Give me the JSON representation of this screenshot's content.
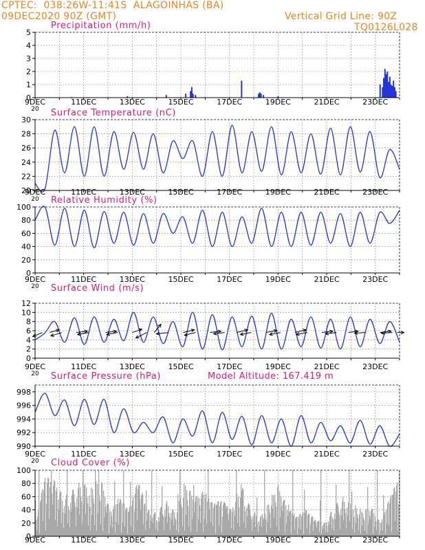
{
  "header": {
    "line1_left": "CPTEC:  038:26W-11:41S  ALAGOINHAS (BA)",
    "line2_left": "09DEC2020 90Z (GMT)",
    "grid_note": "Vertical Grid Line: 90Z",
    "run_code": "TQ0126L028",
    "model_altitude": "Model Altitude: 167.419  m"
  },
  "colors": {
    "header_text": "#e8861c",
    "panel_title": "#e0187a",
    "series_line": "#2233dd",
    "cloud_fill": "#a8a8a8",
    "grid": "#8a8a8a",
    "axis": "#000000"
  },
  "x_axis": {
    "days": 15,
    "tick_labels": [
      "9DEC",
      "11DEC",
      "13DEC",
      "15DEC",
      "17DEC",
      "19DEC",
      "21DEC",
      "23DEC"
    ],
    "tick_days": [
      0,
      2,
      4,
      6,
      8,
      10,
      12,
      14
    ],
    "overlap_fragment": "20"
  },
  "chart_data": [
    {
      "type": "bar",
      "title": "Precipitation  (mm/h)",
      "ylim": [
        0,
        5
      ],
      "yticks": [
        "0",
        "1",
        "2",
        "3",
        "4",
        "5"
      ],
      "grid": true,
      "x_days": [
        1.5,
        3.8,
        5.4,
        6.2,
        6.4,
        6.45,
        6.5,
        6.6,
        8.5,
        9.2,
        9.25,
        9.3,
        9.4,
        10.0,
        14.2,
        14.3,
        14.35,
        14.4,
        14.45,
        14.5,
        14.55,
        14.6,
        14.65,
        14.7,
        14.75,
        14.8,
        14.85
      ],
      "values": [
        0.05,
        0.1,
        0.2,
        0.3,
        0.5,
        0.8,
        0.3,
        0.2,
        1.3,
        0.3,
        0.4,
        0.3,
        0.2,
        0.1,
        1.0,
        0.8,
        1.5,
        2.2,
        1.8,
        2.0,
        1.2,
        1.6,
        1.0,
        0.9,
        1.3,
        0.8,
        0.5
      ]
    },
    {
      "type": "line",
      "title": "Surface Temperature (nC)",
      "ylim": [
        20,
        30
      ],
      "yticks": [
        "20",
        "22",
        "24",
        "26",
        "28",
        "30"
      ],
      "grid": true,
      "series": [
        {
          "values": [
            21.0,
            20.2,
            28.5,
            22.5,
            29.0,
            22.0,
            29.0,
            22.0,
            28.3,
            23.0,
            28.2,
            23.0,
            28.0,
            22.5,
            27.0,
            24.5,
            27.0,
            22.0,
            28.3,
            22.0,
            29.2,
            22.5,
            28.3,
            22.7,
            29.0,
            22.2,
            28.3,
            22.5,
            28.0,
            22.3,
            28.8,
            22.2,
            29.0,
            22.6,
            28.3,
            21.8,
            25.8,
            23.0
          ]
        }
      ]
    },
    {
      "type": "line",
      "title": "Relative Humidity (%)",
      "ylim": [
        0,
        100
      ],
      "yticks": [
        "0",
        "20",
        "40",
        "60",
        "80",
        "100"
      ],
      "grid": true,
      "series": [
        {
          "values": [
            80,
            100,
            42,
            98,
            40,
            95,
            38,
            93,
            45,
            92,
            42,
            90,
            45,
            90,
            60,
            85,
            45,
            95,
            40,
            92,
            40,
            85,
            45,
            98,
            40,
            92,
            40,
            92,
            42,
            92,
            45,
            90,
            40,
            92,
            45,
            92,
            75,
            95
          ]
        }
      ]
    },
    {
      "type": "line",
      "title": "Surface Wind (m/s)",
      "ylim": [
        0,
        12
      ],
      "yticks": [
        "0",
        "2",
        "4",
        "6",
        "8",
        "10",
        "12"
      ],
      "grid": true,
      "series": [
        {
          "values": [
            4.0,
            5.5,
            8.0,
            3.5,
            8.8,
            3.0,
            9.0,
            3.5,
            8.5,
            3.8,
            10.0,
            3.5,
            9.0,
            3.2,
            8.0,
            2.5,
            10.0,
            2.0,
            9.5,
            1.8,
            9.0,
            2.5,
            9.2,
            2.0,
            9.8,
            2.0,
            8.5,
            2.5,
            9.0,
            2.2,
            8.5,
            2.0,
            9.0,
            2.5,
            8.5,
            3.2,
            8.0,
            3.5
          ]
        }
      ],
      "wind_arrows": [
        {
          "day": 0.3,
          "dx": -14,
          "dy": 6
        },
        {
          "day": 0.6,
          "dx": 14,
          "dy": -4
        },
        {
          "day": 1.1,
          "dx": -16,
          "dy": 5
        },
        {
          "day": 1.7,
          "dx": 16,
          "dy": -2
        },
        {
          "day": 2.2,
          "dx": -16,
          "dy": 3
        },
        {
          "day": 2.9,
          "dx": 16,
          "dy": -2
        },
        {
          "day": 3.4,
          "dx": -16,
          "dy": 3
        },
        {
          "day": 4.0,
          "dx": 14,
          "dy": -5
        },
        {
          "day": 4.6,
          "dx": -16,
          "dy": 8
        },
        {
          "day": 4.9,
          "dx": 10,
          "dy": -12
        },
        {
          "day": 5.5,
          "dx": -18,
          "dy": 2
        },
        {
          "day": 6.1,
          "dx": 16,
          "dy": -4
        },
        {
          "day": 6.6,
          "dx": -16,
          "dy": 4
        },
        {
          "day": 7.2,
          "dx": 16,
          "dy": -2
        },
        {
          "day": 7.8,
          "dx": -16,
          "dy": 2
        },
        {
          "day": 8.3,
          "dx": 16,
          "dy": -4
        },
        {
          "day": 8.9,
          "dx": -16,
          "dy": 3
        },
        {
          "day": 9.5,
          "dx": 16,
          "dy": -3
        },
        {
          "day": 10.1,
          "dx": -16,
          "dy": 3
        },
        {
          "day": 10.7,
          "dx": 16,
          "dy": -4
        },
        {
          "day": 11.2,
          "dx": -16,
          "dy": 3
        },
        {
          "day": 11.8,
          "dx": 16,
          "dy": -2
        },
        {
          "day": 12.4,
          "dx": -16,
          "dy": 2
        },
        {
          "day": 12.9,
          "dx": 14,
          "dy": -2
        },
        {
          "day": 13.6,
          "dx": -16,
          "dy": 1
        },
        {
          "day": 14.2,
          "dx": 16,
          "dy": -2
        },
        {
          "day": 14.7,
          "dx": -16,
          "dy": 1
        },
        {
          "day": 14.9,
          "dx": 10,
          "dy": 0
        }
      ]
    },
    {
      "type": "line",
      "title": "Surface Pressure (hPa)",
      "ylim": [
        990,
        999
      ],
      "yticks": [
        "990",
        "992",
        "994",
        "996",
        "998"
      ],
      "grid": true,
      "series": [
        {
          "values": [
            995.0,
            997.8,
            994.5,
            996.8,
            993.0,
            996.9,
            993.2,
            996.9,
            992.0,
            995.5,
            992.0,
            993.5,
            992.0,
            994.3,
            990.5,
            994.0,
            991.5,
            995.2,
            990.5,
            995.0,
            991.0,
            994.4,
            990.2,
            994.5,
            990.5,
            994.0,
            990.0,
            994.5,
            990.5,
            993.5,
            990.8,
            993.0,
            990.5,
            993.8,
            990.3,
            993.0,
            990.0,
            991.8
          ]
        }
      ]
    },
    {
      "type": "bar",
      "title": "Cloud Cover (%)",
      "ylim": [
        0,
        100
      ],
      "yticks": [
        "0",
        "20",
        "40",
        "60",
        "80",
        "100"
      ],
      "grid": true,
      "fill": "area-bars",
      "profile": [
        20,
        90,
        85,
        60,
        70,
        88,
        80,
        90,
        40,
        60,
        40,
        85,
        40,
        35,
        55,
        40,
        85,
        60,
        70,
        50,
        55,
        40,
        80,
        45,
        30,
        55,
        80,
        45,
        30,
        40,
        25,
        20,
        45,
        60,
        55,
        40,
        45,
        20,
        60,
        90
      ]
    }
  ]
}
